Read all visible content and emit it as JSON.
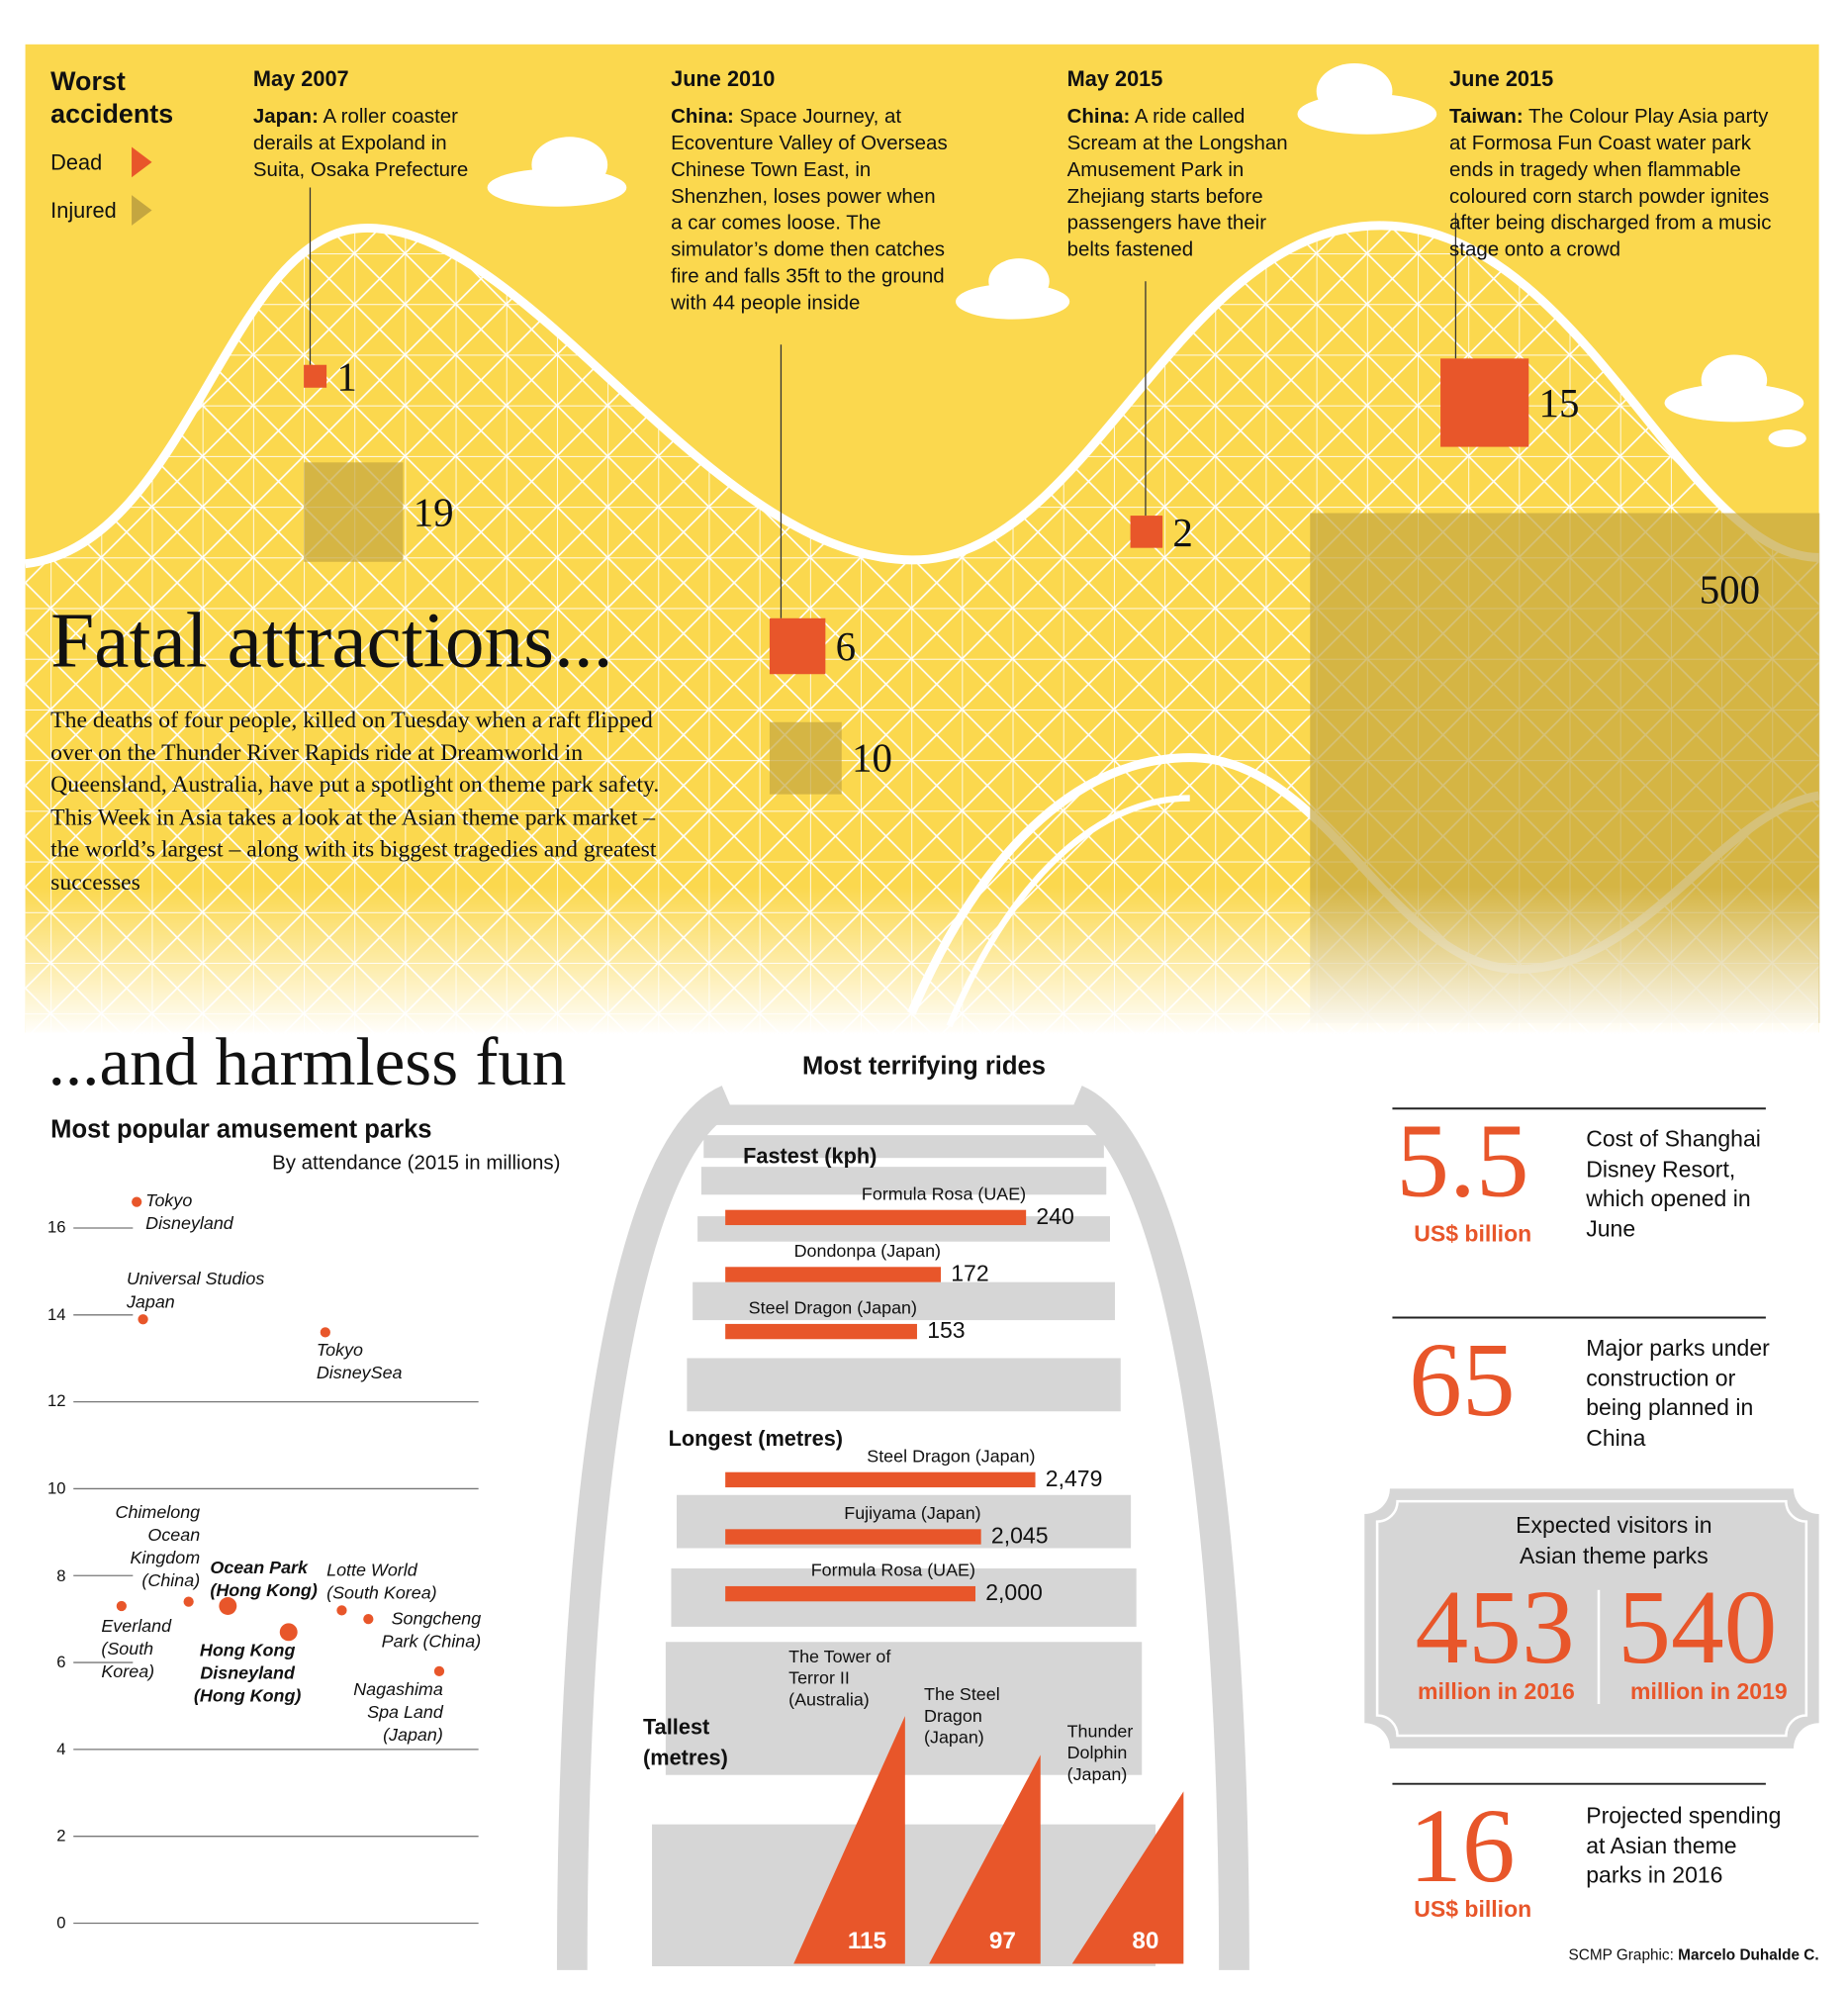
{
  "headline": "Fatal attractions...",
  "intro": "The deaths of four people, killed on Tuesday when a raft flipped over on the Thunder River Rapids ride at Dreamworld in Queensland, Australia, have put a spotlight on theme park safety. This Week in Asia takes a look at the Asian theme park market – the world’s largest – along with its biggest tragedies and greatest successes",
  "subhead": "...and harmless fun",
  "rides_title": "Most terrifying rides",
  "chart_data": [
    {
      "type": "square",
      "title": "Worst accidents",
      "categories": [
        "May 2007",
        "June 2010",
        "May 2015",
        "June 2015"
      ],
      "series": [
        {
          "name": "Dead",
          "color": "#e8562a",
          "values": [
            1,
            6,
            2,
            15
          ]
        },
        {
          "name": "Injured",
          "color": "#c4a640",
          "values": [
            19,
            10,
            null,
            500
          ]
        }
      ],
      "annotations": [
        {
          "place": "Japan:",
          "text": "A roller coaster derails at Expoland in Suita, Osaka Prefecture"
        },
        {
          "place": "China:",
          "text": "Space Journey, at Ecoventure Valley of Overseas Chinese Town East, in Shenzhen, loses power when a car comes loose. The simulator’s dome then catches fire and falls 35ft to the ground with 44 people inside"
        },
        {
          "place": "China:",
          "text": "A ride called Scream at the Longshan Amusement Park in Zhejiang starts before passengers have their belts fastened"
        },
        {
          "place": "Taiwan:",
          "text": "The Colour Play Asia party at Formosa Fun Coast water park ends in tragedy when flammable coloured corn starch powder ignites after being discharged from a music stage onto a crowd"
        }
      ]
    },
    {
      "type": "scatter",
      "title": "Most popular amusement parks",
      "subtitle": "By attendance (2015 in millions)",
      "categories": [
        "Tokyo Disneyland",
        "Universal Studios Japan",
        "Tokyo DisneySea",
        "Chimelong Ocean Kingdom (China)",
        "Ocean Park (Hong Kong)",
        "Lotte World (South Korea)",
        "Everland (South Korea)",
        "Songcheng Park (China)",
        "Hong Kong Disneyland (Hong Kong)",
        "Nagashima Spa Land (Japan)"
      ],
      "values": [
        16.6,
        13.9,
        13.6,
        7.4,
        7.3,
        7.2,
        7.3,
        7.0,
        6.7,
        5.8
      ],
      "color": "#e8562a",
      "ylim": [
        0,
        17
      ],
      "yticks": [
        0,
        2,
        4,
        6,
        8,
        10,
        12,
        14,
        16
      ],
      "grid": true
    },
    {
      "type": "bar",
      "title": "Fastest (kph)",
      "categories": [
        "Formula Rosa (UAE)",
        "Dondonpa (Japan)",
        "Steel Dragon (Japan)"
      ],
      "values": [
        240,
        172,
        153
      ],
      "color": "#e8562a"
    },
    {
      "type": "bar",
      "title": "Longest (metres)",
      "categories": [
        "Steel Dragon (Japan)",
        "Fujiyama (Japan)",
        "Formula Rosa (UAE)"
      ],
      "values": [
        2479,
        2045,
        2000
      ],
      "value_labels": [
        "2,479",
        "2,045",
        "2,000"
      ],
      "color": "#e8562a"
    },
    {
      "type": "triangle",
      "title": "Tallest (metres)",
      "categories": [
        "The Tower of Terror II (Australia)",
        "The Steel Dragon (Japan)",
        "Thunder Dolphin (Japan)"
      ],
      "values": [
        115,
        97,
        80
      ],
      "color": "#e8562a"
    }
  ],
  "stats": [
    {
      "value": 5.5,
      "unit": "US$ billion",
      "text": "Cost of Shanghai Disney Resort, which opened in June"
    },
    {
      "value": 65,
      "text": "Major parks under construction or being planned in China"
    },
    {
      "title": "Expected visitors in Asian theme parks",
      "items": [
        {
          "value": 453,
          "unit": "million in 2016"
        },
        {
          "value": 540,
          "unit": "million in 2019"
        }
      ]
    },
    {
      "value": 16,
      "unit": "US$ billion",
      "text": "Projected spending at Asian theme parks in 2016"
    }
  ],
  "credit": {
    "label": "SCMP Graphic:",
    "name": "Marcelo Duhalde C."
  }
}
